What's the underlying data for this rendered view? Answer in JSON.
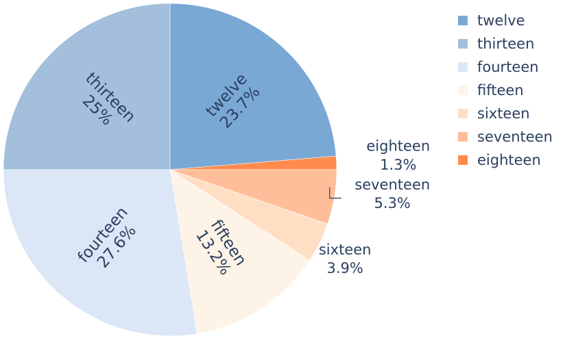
{
  "chart_data": {
    "type": "pie",
    "title": "",
    "slices": [
      {
        "label": "twelve",
        "value": 23.7,
        "percent_text": "23.7%",
        "color": "#7aa8d4"
      },
      {
        "label": "eighteen",
        "value": 1.3,
        "percent_text": "1.3%",
        "color": "#ff8b4d"
      },
      {
        "label": "seventeen",
        "value": 5.3,
        "percent_text": "5.3%",
        "color": "#ffbe99"
      },
      {
        "label": "sixteen",
        "value": 3.9,
        "percent_text": "3.9%",
        "color": "#ffdfc4"
      },
      {
        "label": "fifteen",
        "value": 13.2,
        "percent_text": "13.2%",
        "color": "#fef3e7"
      },
      {
        "label": "fourteen",
        "value": 27.6,
        "percent_text": "27.6%",
        "color": "#dbe6f6"
      },
      {
        "label": "thirteen",
        "value": 25.0,
        "percent_text": "25%",
        "color": "#a3bfdc"
      }
    ],
    "legend": {
      "placement": "top-right",
      "items": [
        {
          "label": "twelve",
          "color": "#7aa8d4"
        },
        {
          "label": "thirteen",
          "color": "#a3bfdc"
        },
        {
          "label": "fourteen",
          "color": "#dbe6f6"
        },
        {
          "label": "fifteen",
          "color": "#fef3e7"
        },
        {
          "label": "sixteen",
          "color": "#ffdfc4"
        },
        {
          "label": "seventeen",
          "color": "#ffbe99"
        },
        {
          "label": "eighteen",
          "color": "#ff8b4d"
        }
      ]
    }
  }
}
